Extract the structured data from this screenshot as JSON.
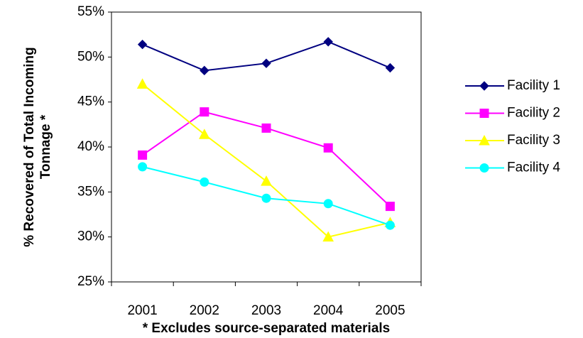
{
  "chart_data": {
    "type": "line",
    "ylabel": [
      "% Recovered of Total Incoming",
      "Tonnage *"
    ],
    "xlabel": "* Excludes source-separated materials",
    "categories": [
      "2001",
      "2002",
      "2003",
      "2004",
      "2005"
    ],
    "series": [
      {
        "name": "Facility 1",
        "color": "#000080",
        "marker": "diamond",
        "values": [
          51.4,
          48.5,
          49.3,
          51.7,
          48.8
        ]
      },
      {
        "name": "Facility 2",
        "color": "#ff00ff",
        "marker": "square",
        "values": [
          39.1,
          43.9,
          42.1,
          39.9,
          33.4
        ]
      },
      {
        "name": "Facility 3",
        "color": "#ffff00",
        "marker": "triangle",
        "values": [
          47.0,
          41.4,
          36.2,
          30.0,
          31.6
        ]
      },
      {
        "name": "Facility 4",
        "color": "#00ffff",
        "marker": "circle",
        "values": [
          37.8,
          36.1,
          34.3,
          33.7,
          31.3
        ]
      }
    ],
    "ylim": [
      25,
      55
    ],
    "yticks": [
      {
        "value": 25,
        "label": "25%"
      },
      {
        "value": 30,
        "label": "30%"
      },
      {
        "value": 35,
        "label": "35%"
      },
      {
        "value": 40,
        "label": "40%"
      },
      {
        "value": 45,
        "label": "45%"
      },
      {
        "value": 50,
        "label": "50%"
      },
      {
        "value": 55,
        "label": "55%"
      }
    ],
    "legend": "right",
    "grid": false
  }
}
